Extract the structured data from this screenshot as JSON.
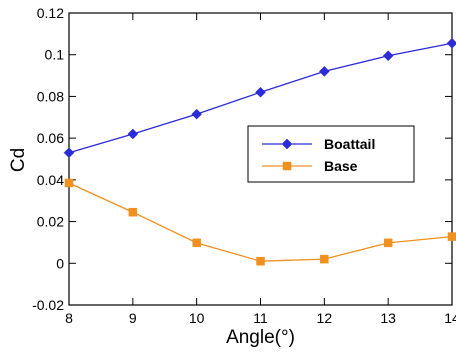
{
  "chart_data": {
    "type": "line",
    "title": "",
    "xlabel": "Angle(°)",
    "ylabel": "Cd",
    "xlim": [
      8,
      14
    ],
    "ylim": [
      -0.02,
      0.12
    ],
    "x": [
      8,
      9,
      10,
      11,
      12,
      13,
      14
    ],
    "x_ticks": [
      "8",
      "9",
      "10",
      "11",
      "12",
      "13",
      "14"
    ],
    "y_ticks": [
      "-0.02",
      "0",
      "0.02",
      "0.04",
      "0.06",
      "0.08",
      "0.1",
      "0.12"
    ],
    "y_tick_values": [
      -0.02,
      0,
      0.02,
      0.04,
      0.06,
      0.08,
      0.1,
      0.12
    ],
    "grid": false,
    "legend_position": "center-right",
    "series": [
      {
        "name": "Boattail",
        "color": "#2b2bd8",
        "marker": "diamond",
        "values": [
          0.053,
          0.062,
          0.0715,
          0.082,
          0.092,
          0.0995,
          0.1055
        ]
      },
      {
        "name": "Base",
        "color": "#f0901e",
        "marker": "square",
        "values": [
          0.0385,
          0.0245,
          0.0098,
          0.001,
          0.002,
          0.0098,
          0.0128
        ]
      }
    ]
  }
}
